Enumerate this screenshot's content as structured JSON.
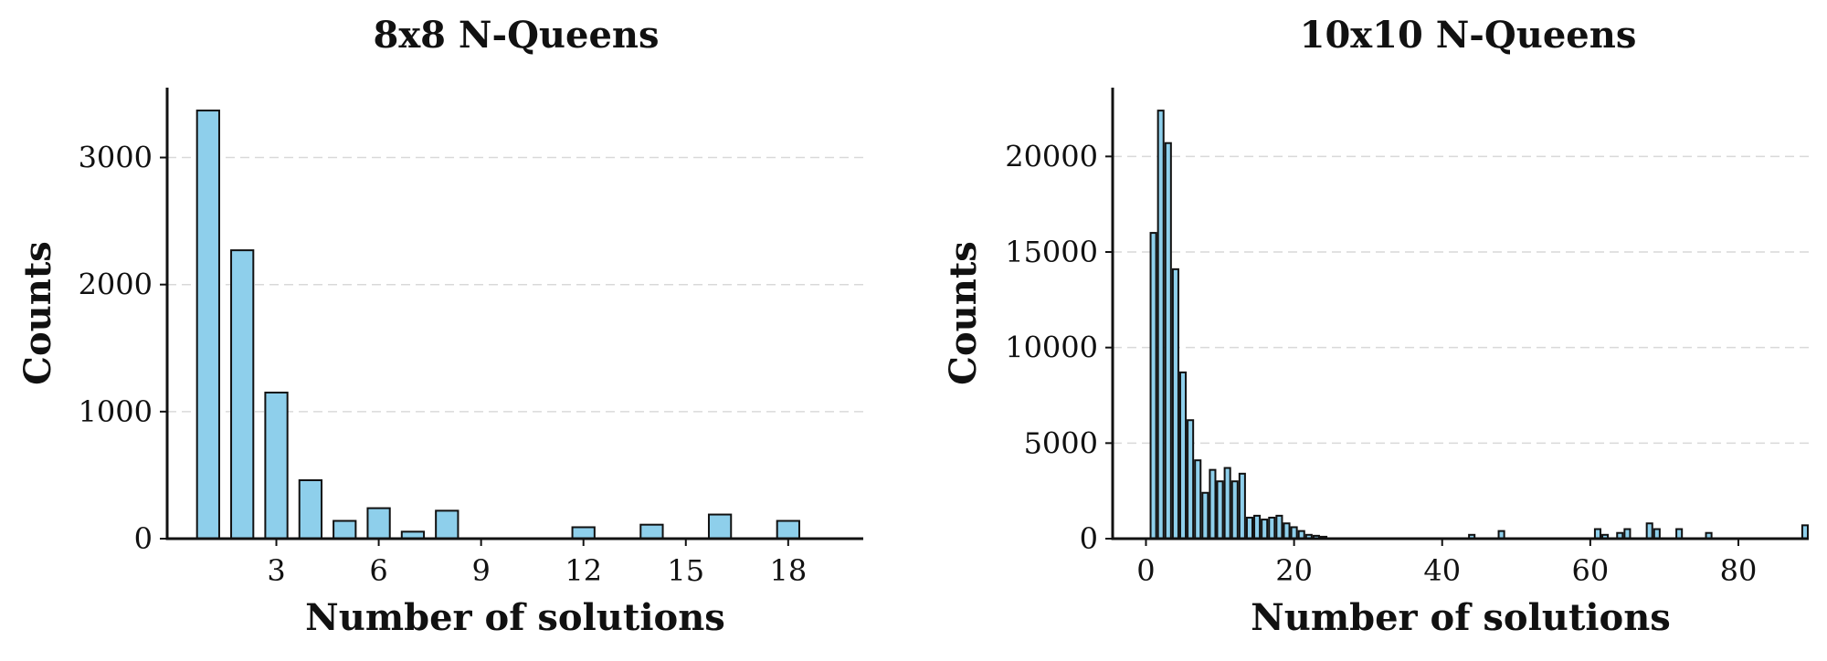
{
  "chart_data": [
    {
      "type": "bar",
      "title": "8x8 N-Queens",
      "xlabel": "Number of solutions",
      "ylabel": "Counts",
      "xlim": [
        -0.2,
        20.2
      ],
      "ylim": [
        0,
        3550
      ],
      "xticks": [
        3,
        6,
        9,
        12,
        15,
        18
      ],
      "yticks": [
        0,
        1000,
        2000,
        3000
      ],
      "grid": "y",
      "bar_color": "#8ecfeb",
      "bar_width": 0.65,
      "x": [
        1,
        2,
        3,
        4,
        5,
        6,
        7,
        8,
        12,
        14,
        16,
        18
      ],
      "values": [
        3370,
        2270,
        1150,
        460,
        140,
        240,
        55,
        220,
        90,
        110,
        190,
        140
      ]
    },
    {
      "type": "bar",
      "title": "10x10 N-Queens",
      "xlabel": "Number of solutions",
      "ylabel": "Counts",
      "xlim": [
        -4.5,
        89.5
      ],
      "ylim": [
        0,
        23600
      ],
      "xticks": [
        0,
        20,
        40,
        60,
        80
      ],
      "yticks": [
        0,
        5000,
        10000,
        15000,
        20000
      ],
      "grid": "y",
      "bar_color": "#8ecfeb",
      "bar_width": 0.75,
      "x": [
        1,
        2,
        3,
        4,
        5,
        6,
        7,
        8,
        9,
        10,
        11,
        12,
        13,
        14,
        15,
        16,
        17,
        18,
        19,
        20,
        21,
        22,
        23,
        24,
        44,
        48,
        61,
        62,
        64,
        65,
        68,
        69,
        72,
        76,
        89
      ],
      "values": [
        16000,
        22400,
        20700,
        14100,
        8700,
        6200,
        4100,
        2400,
        3600,
        3000,
        3700,
        3000,
        3400,
        1100,
        1200,
        1000,
        1100,
        1200,
        800,
        600,
        400,
        200,
        150,
        100,
        200,
        400,
        500,
        200,
        300,
        500,
        800,
        500,
        500,
        300,
        700
      ]
    }
  ]
}
